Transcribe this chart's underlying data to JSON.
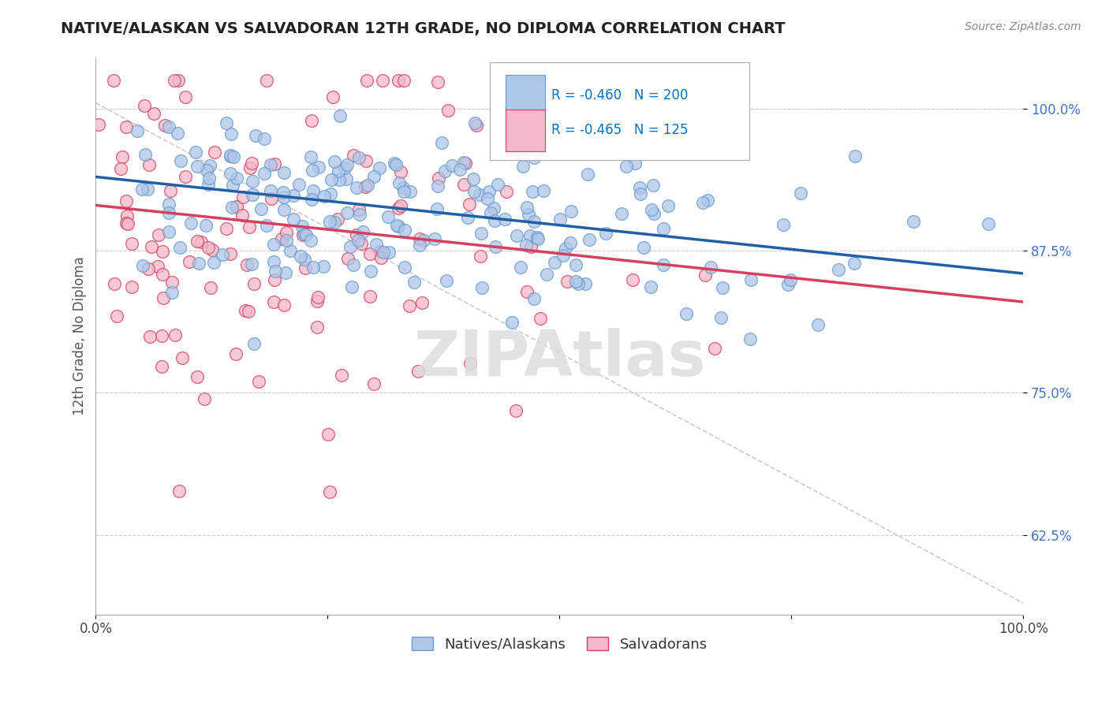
{
  "title": "NATIVE/ALASKAN VS SALVADORAN 12TH GRADE, NO DIPLOMA CORRELATION CHART",
  "source_text": "Source: ZipAtlas.com",
  "ylabel": "12th Grade, No Diploma",
  "watermark": "ZIPAtlas",
  "xlim": [
    0.0,
    1.0
  ],
  "ylim": [
    0.555,
    1.045
  ],
  "yticks": [
    0.625,
    0.75,
    0.875,
    1.0
  ],
  "ytick_labels": [
    "62.5%",
    "75.0%",
    "87.5%",
    "100.0%"
  ],
  "xticks": [
    0.0,
    0.25,
    0.5,
    0.75,
    1.0
  ],
  "xtick_labels": [
    "0.0%",
    "",
    "",
    "",
    "100.0%"
  ],
  "blue_R": -0.46,
  "blue_N": 200,
  "pink_R": -0.465,
  "pink_N": 125,
  "blue_color": "#aec6e8",
  "blue_edge_color": "#6699cc",
  "blue_line_color": "#1f5fa6",
  "pink_color": "#f4b8c8",
  "pink_edge_color": "#d44060",
  "pink_line_color": "#d44060",
  "blue_label": "Natives/Alaskans",
  "pink_label": "Salvadorans",
  "title_color": "#222222",
  "axis_label_color": "#555555",
  "tick_color_right": "#4472c4",
  "background_color": "#ffffff",
  "grid_color": "#cccccc",
  "ref_line_color": "#cccccc",
  "legend_R_color": "#0070c0",
  "blue_scatter_seed": 42,
  "pink_scatter_seed": 13,
  "blue_trend_start_y": 0.94,
  "blue_trend_end_y": 0.855,
  "pink_trend_start_y": 0.915,
  "pink_trend_end_y": 0.83,
  "ref_line_start_y": 1.005,
  "ref_line_end_y": 0.565
}
